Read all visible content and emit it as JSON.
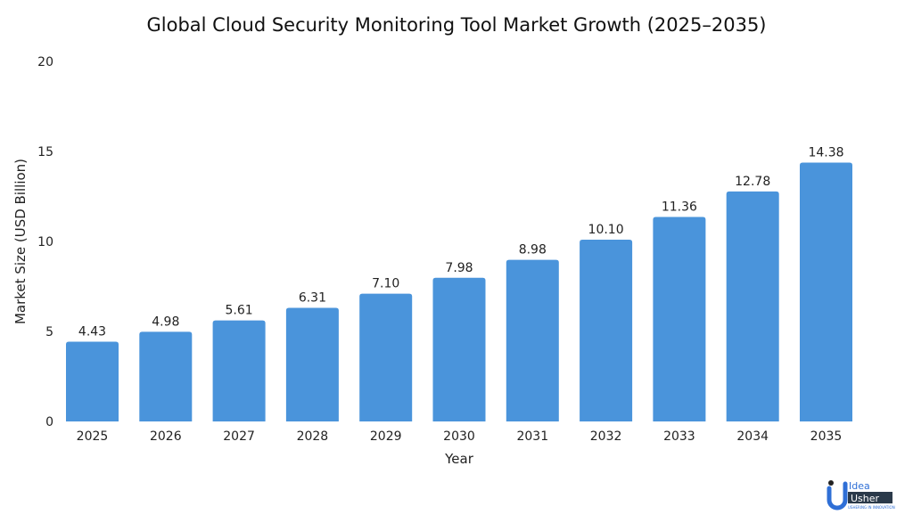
{
  "chart_data": {
    "type": "bar",
    "title": "Global Cloud Security Monitoring Tool Market Growth (2025–2035)",
    "xlabel": "Year",
    "ylabel": "Market Size (USD Billion)",
    "ylim": [
      0,
      20
    ],
    "yticks": [
      "0",
      "5",
      "10",
      "15",
      "20"
    ],
    "grid": false,
    "categories": [
      "2025",
      "2026",
      "2027",
      "2028",
      "2029",
      "2030",
      "2031",
      "2032",
      "2033",
      "2034",
      "2035"
    ],
    "values": [
      4.43,
      4.98,
      5.61,
      6.31,
      7.1,
      7.98,
      8.98,
      10.1,
      11.36,
      12.78,
      14.38
    ],
    "value_labels": [
      "4.43",
      "4.98",
      "5.61",
      "6.31",
      "7.10",
      "7.98",
      "8.98",
      "10.10",
      "11.36",
      "12.78",
      "14.38"
    ],
    "bar_color": "#4a94db"
  },
  "logo": {
    "line1": "Idea",
    "line2": "Usher",
    "tagline": "USHERING IN INNOVATION"
  }
}
